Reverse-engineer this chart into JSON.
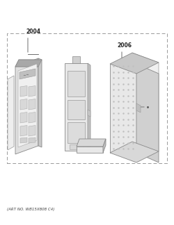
{
  "bottom_text": "(ART NO. WB15X808 C4)",
  "label_2004": "2004",
  "label_2006": "2006",
  "bg_color": "#ffffff"
}
